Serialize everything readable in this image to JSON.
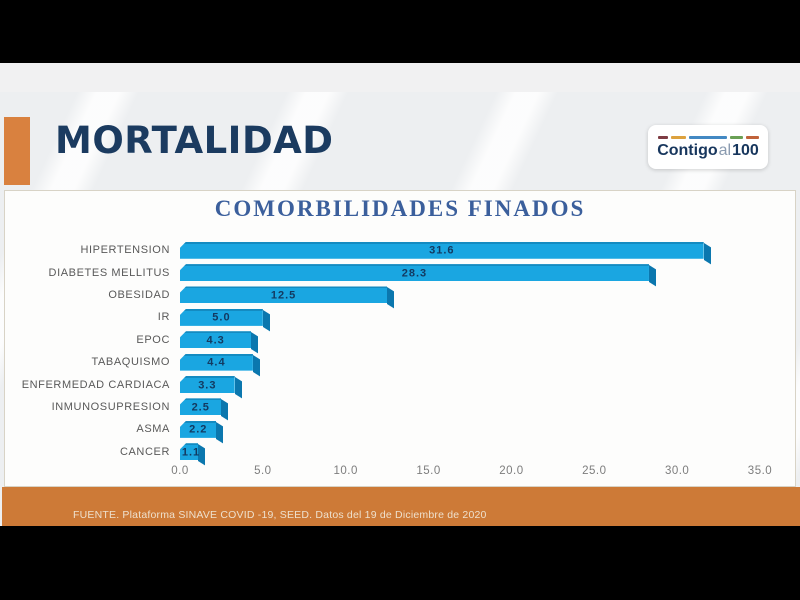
{
  "header": {
    "title": "MORTALIDAD",
    "logo": {
      "bold1": "Contigo",
      "light": "al",
      "bold2": "100",
      "dashes": [
        {
          "color": "#7e3c43",
          "width": 10
        },
        {
          "color": "#dda23e",
          "width": 15
        },
        {
          "color": "#4389c3",
          "width": 38
        },
        {
          "color": "#6aa055",
          "width": 13
        },
        {
          "color": "#c0623a",
          "width": 13
        }
      ]
    }
  },
  "chart_data": {
    "type": "bar",
    "orientation": "horizontal",
    "title": "COMORBILIDADES FINADOS",
    "categories": [
      "HIPERTENSION",
      "DIABETES MELLITUS",
      "OBESIDAD",
      "IR",
      "EPOC",
      "TABAQUISMO",
      "ENFERMEDAD CARDIACA",
      "INMUNOSUPRESION",
      "ASMA",
      "CANCER"
    ],
    "values": [
      31.6,
      28.3,
      12.5,
      5.0,
      4.3,
      4.4,
      3.3,
      2.5,
      2.2,
      1.1
    ],
    "xlim": [
      0,
      35
    ],
    "x_ticks": [
      0,
      5,
      10,
      15,
      20,
      25,
      30,
      35
    ],
    "x_tick_labels": [
      "0.0",
      "5.0",
      "10.0",
      "15.0",
      "20.0",
      "25.0",
      "30.0",
      "35.0"
    ],
    "grid": false,
    "legend": false,
    "data_labels": "inside-center",
    "bar_color": "#1aa6e1",
    "bar_side_color": "#0b77ae",
    "value_label_color": "#133a61"
  },
  "footer": {
    "source": "FUENTE. Plataforma SINAVE COVID -19, SEED. Datos del 19 de Diciembre de 2020"
  },
  "colors": {
    "accent_orange": "#d9813f",
    "band_orange": "#cd7a37",
    "title_navy": "#1b3b60",
    "chart_title_blue": "#3b5f9c"
  }
}
